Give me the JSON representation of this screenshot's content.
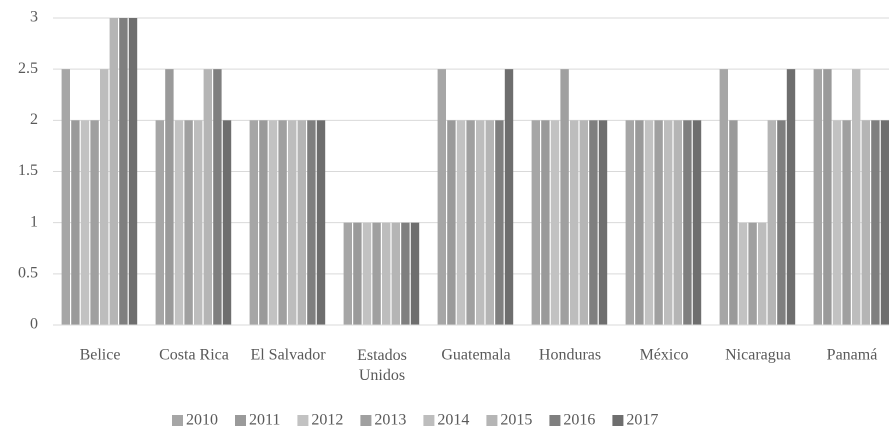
{
  "chart_data": {
    "type": "bar",
    "categories": [
      "Belice",
      "Costa Rica",
      "El Salvador",
      "Estados Unidos",
      "Guatemala",
      "Honduras",
      "México",
      "Nicaragua",
      "Panamá"
    ],
    "series": [
      {
        "name": "2010",
        "color": "#a6a6a6",
        "values": [
          2.5,
          2,
          2,
          1,
          2.5,
          2,
          2,
          2.5,
          2.5
        ]
      },
      {
        "name": "2011",
        "color": "#9a9a9a",
        "values": [
          2,
          2.5,
          2,
          1,
          2,
          2,
          2,
          2,
          2.5
        ]
      },
      {
        "name": "2012",
        "color": "#c2c2c2",
        "values": [
          2,
          2,
          2,
          1,
          2,
          2,
          2,
          1,
          2
        ]
      },
      {
        "name": "2013",
        "color": "#a0a0a0",
        "values": [
          2,
          2,
          2,
          1,
          2,
          2.5,
          2,
          1,
          2
        ]
      },
      {
        "name": "2014",
        "color": "#bdbdbd",
        "values": [
          2.5,
          2,
          2,
          1,
          2,
          2,
          2,
          1,
          2.5
        ]
      },
      {
        "name": "2015",
        "color": "#b5b5b5",
        "values": [
          3,
          2.5,
          2,
          1,
          2,
          2,
          2,
          2,
          2
        ]
      },
      {
        "name": "2016",
        "color": "#7f7f7f",
        "values": [
          3,
          2.5,
          2,
          1,
          2,
          2,
          2,
          2,
          2
        ]
      },
      {
        "name": "2017",
        "color": "#6e6e6e",
        "values": [
          3,
          2,
          2,
          1,
          2.5,
          2,
          2,
          2.5,
          2
        ]
      }
    ],
    "ylim": [
      0,
      3
    ],
    "yticks": [
      0,
      0.5,
      1,
      1.5,
      2,
      2.5,
      3
    ],
    "grid": true,
    "legend": "bottom"
  }
}
